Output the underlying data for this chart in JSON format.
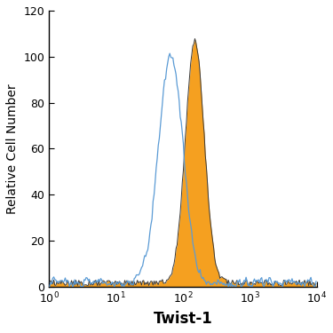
{
  "title": "",
  "xlabel": "Twist-1",
  "ylabel": "Relative Cell Number",
  "xlim_log_min": 0,
  "xlim_log_max": 4,
  "ylim": [
    0,
    120
  ],
  "yticks": [
    0,
    20,
    40,
    60,
    80,
    100,
    120
  ],
  "background_color": "#ffffff",
  "blue_color": "#5b9bd5",
  "orange_color": "#f5a020",
  "orange_edge_color": "#3a3a3a",
  "xlabel_fontsize": 12,
  "ylabel_fontsize": 10,
  "tick_fontsize": 9,
  "blue_peak_log": 1.82,
  "blue_sigma_log": 0.18,
  "orange_peak_log": 2.18,
  "orange_sigma_log": 0.14,
  "blue_peak_height": 100,
  "orange_peak_height": 105,
  "n_bins": 256,
  "seed": 7
}
